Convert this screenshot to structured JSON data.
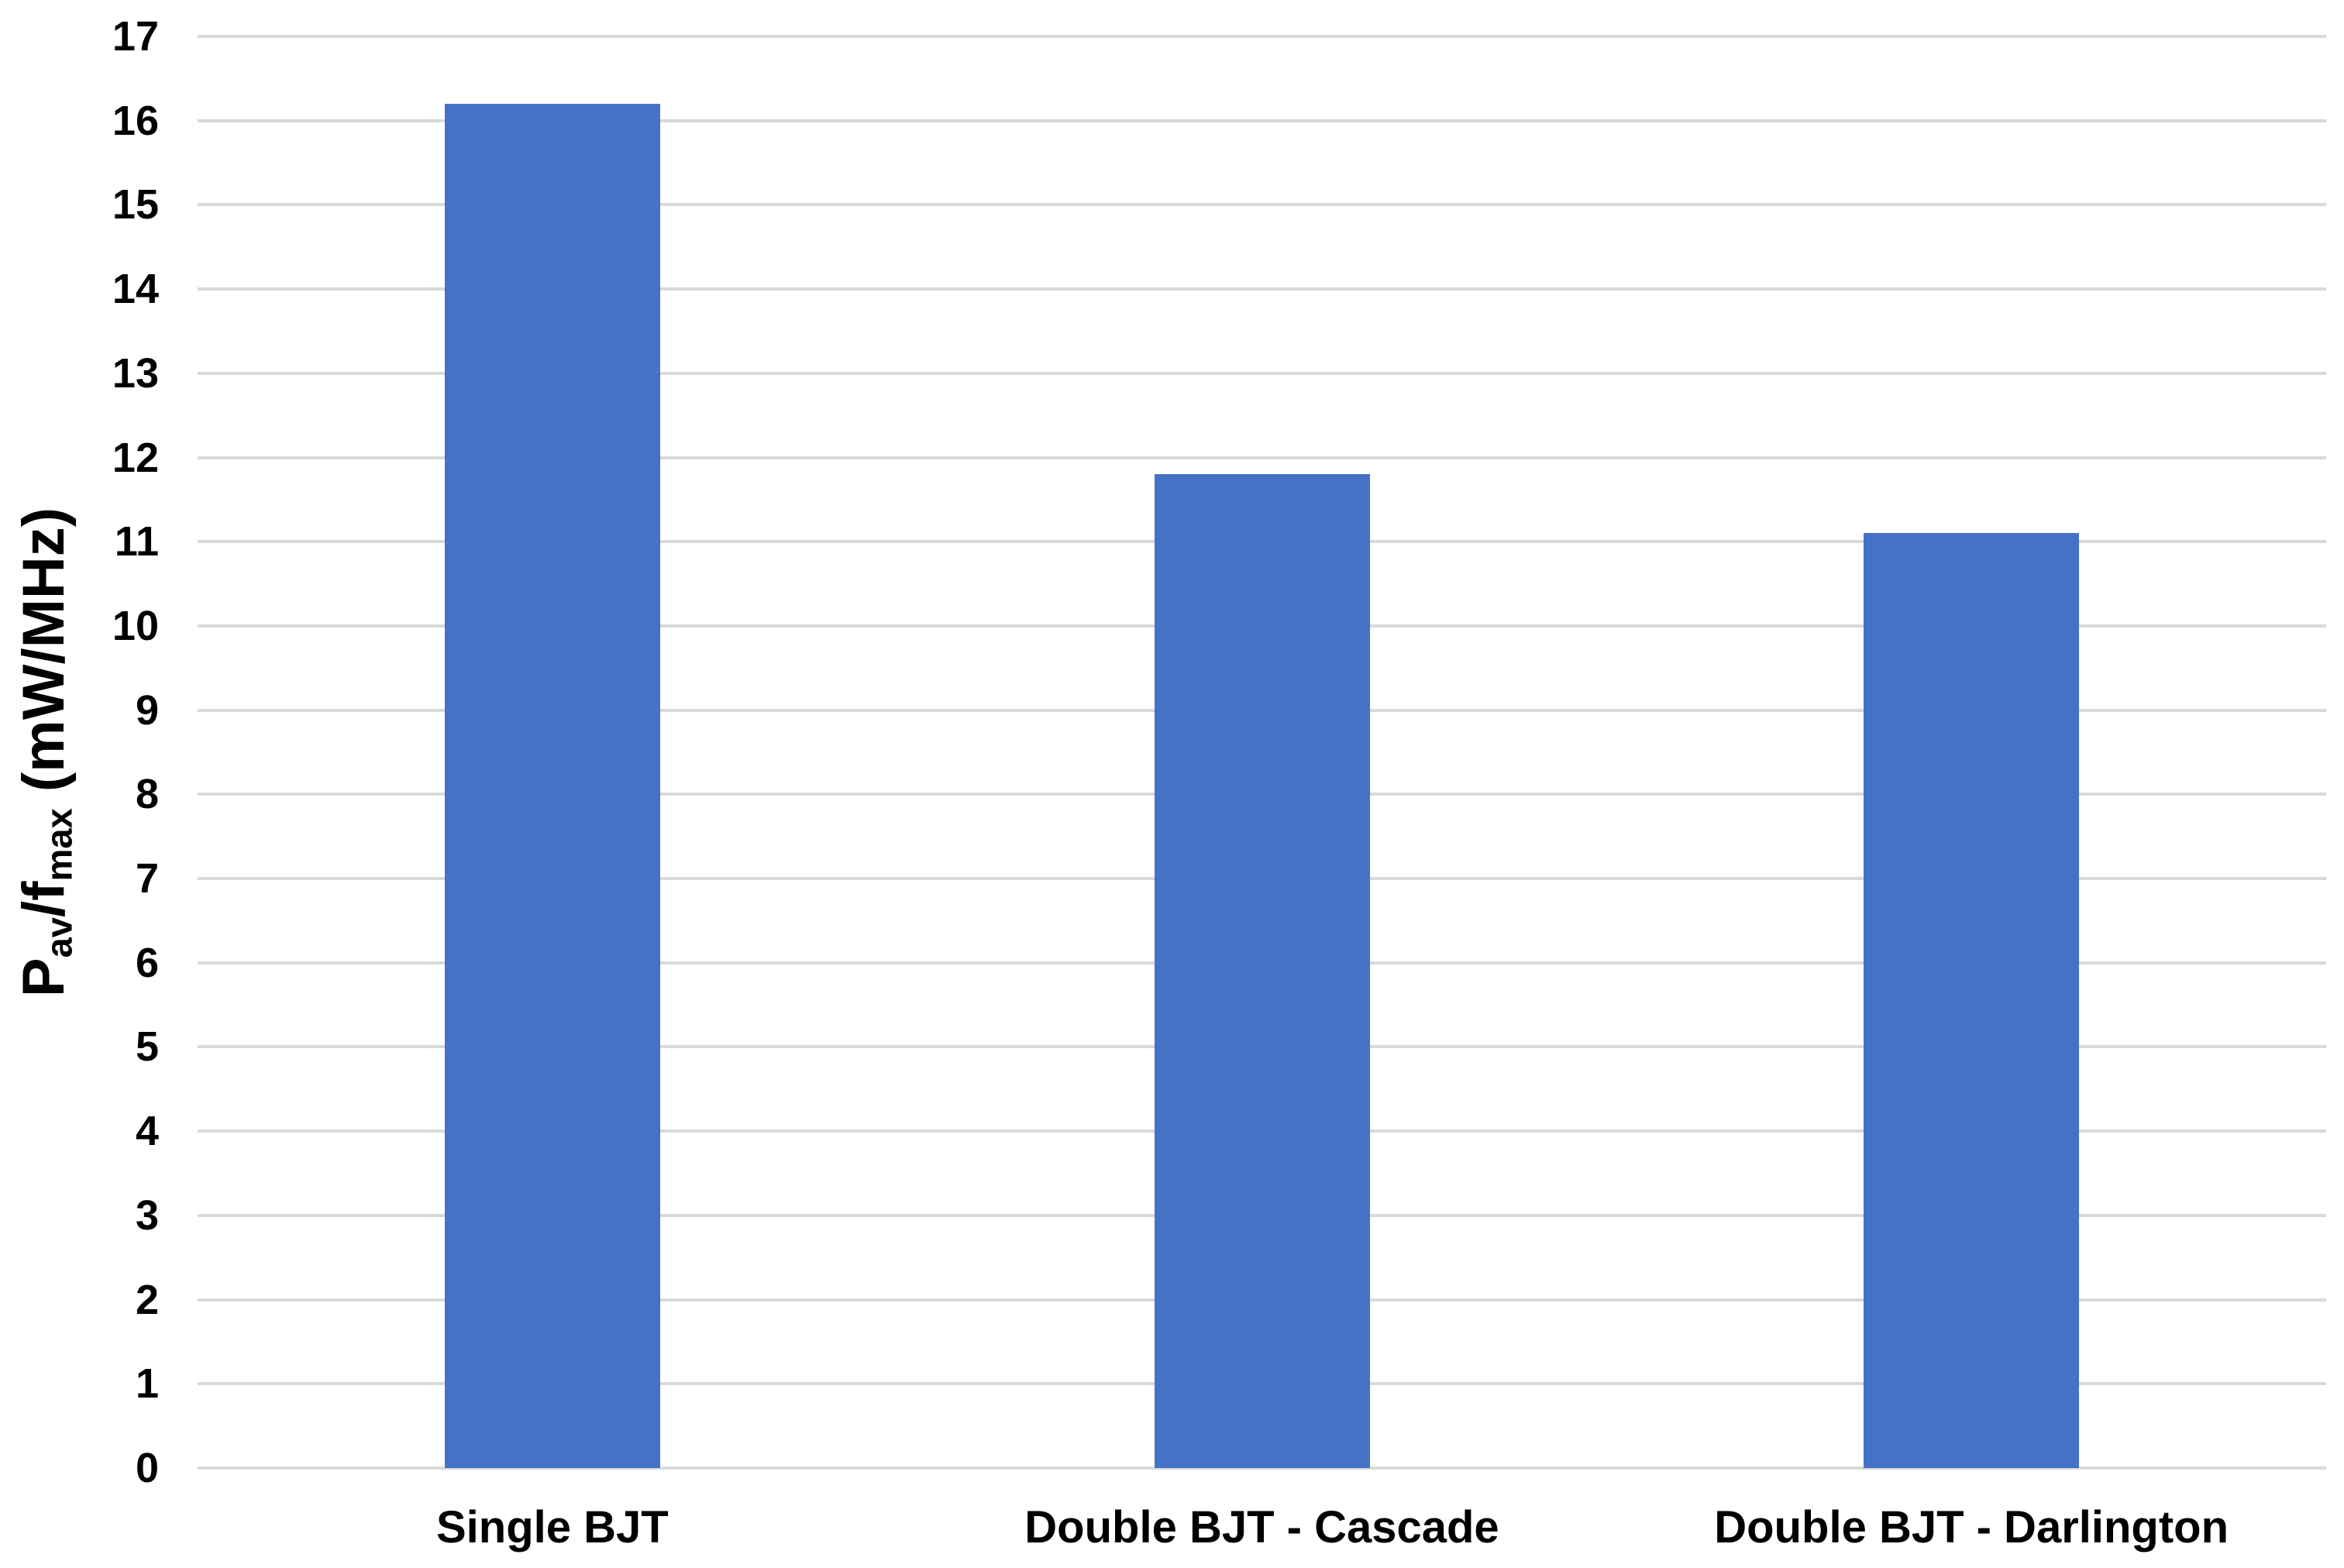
{
  "chart_data": {
    "type": "bar",
    "categories": [
      "Single BJT",
      "Double BJT - Cascade",
      "Double BJT - Darlington"
    ],
    "values": [
      16.2,
      11.8,
      11.1
    ],
    "title": "",
    "xlabel": "",
    "ylabel": "Pav/fmax (mW/MHz)",
    "ylabel_parts": [
      {
        "t": "P",
        "sub": false
      },
      {
        "t": "av",
        "sub": true
      },
      {
        "t": "/f",
        "sub": false
      },
      {
        "t": "max",
        "sub": true
      },
      {
        "t": " (mW/MHz)",
        "sub": false
      }
    ],
    "ylim": [
      0,
      17
    ],
    "ytick_step": 1,
    "yticks": [
      0,
      1,
      2,
      3,
      4,
      5,
      6,
      7,
      8,
      9,
      10,
      11,
      12,
      13,
      14,
      15,
      16,
      17
    ],
    "grid": true,
    "legend_position": "none",
    "bar_color": "#4572c7",
    "gridline_color": "#d9d9d9",
    "text_color": "#000000",
    "background_color": "#ffffff"
  }
}
